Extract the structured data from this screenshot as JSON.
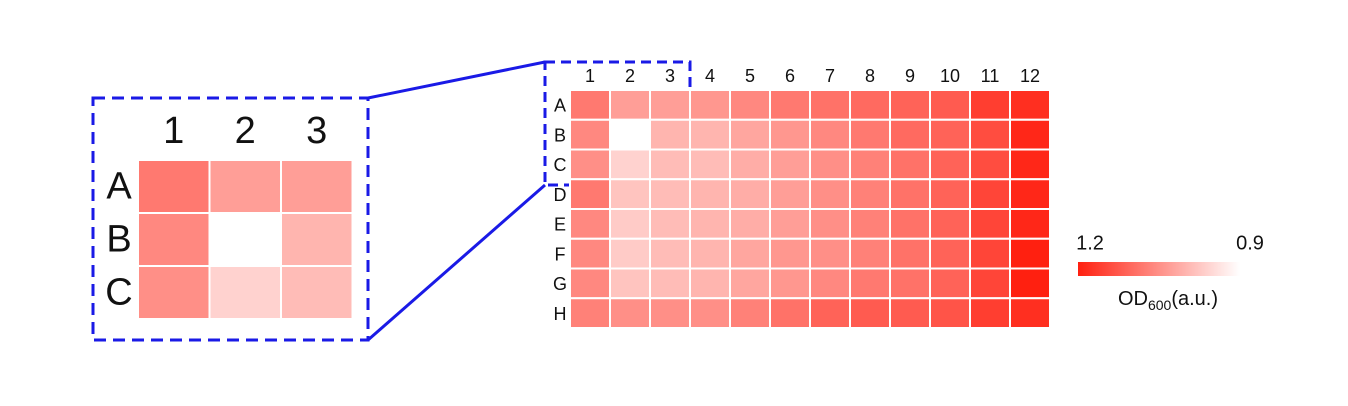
{
  "chart_data": {
    "type": "heatmap",
    "columns": [
      "1",
      "2",
      "3",
      "4",
      "5",
      "6",
      "7",
      "8",
      "9",
      "10",
      "11",
      "12"
    ],
    "rows": [
      "A",
      "B",
      "C",
      "D",
      "E",
      "F",
      "G",
      "H"
    ],
    "values": [
      [
        1.08,
        1.03,
        1.03,
        1.04,
        1.06,
        1.08,
        1.09,
        1.1,
        1.11,
        1.12,
        1.16,
        1.18
      ],
      [
        1.06,
        0.9,
        1.0,
        1.0,
        1.02,
        1.04,
        1.06,
        1.08,
        1.1,
        1.11,
        1.14,
        1.19
      ],
      [
        1.05,
        0.96,
        0.99,
        0.99,
        1.01,
        1.03,
        1.05,
        1.07,
        1.09,
        1.11,
        1.14,
        1.19
      ],
      [
        1.08,
        0.98,
        0.99,
        1.0,
        1.01,
        1.03,
        1.05,
        1.07,
        1.09,
        1.11,
        1.15,
        1.19
      ],
      [
        1.06,
        0.97,
        0.99,
        1.0,
        1.01,
        1.03,
        1.05,
        1.07,
        1.09,
        1.11,
        1.15,
        1.19
      ],
      [
        1.06,
        0.97,
        0.99,
        1.0,
        1.02,
        1.04,
        1.05,
        1.07,
        1.09,
        1.11,
        1.15,
        1.2
      ],
      [
        1.06,
        0.98,
        0.99,
        1.0,
        1.02,
        1.04,
        1.06,
        1.08,
        1.09,
        1.11,
        1.15,
        1.2
      ],
      [
        1.07,
        1.05,
        1.05,
        1.05,
        1.07,
        1.09,
        1.11,
        1.12,
        1.12,
        1.13,
        1.16,
        1.18
      ]
    ],
    "colorbar_ticks": [
      1.2,
      0.9
    ],
    "colors": [
      "#ff2010",
      "#ffffff"
    ],
    "colorbar_label": [
      "OD",
      "600",
      "(a.u.)"
    ],
    "zoom_rows": 3,
    "zoom_columns": 3
  }
}
